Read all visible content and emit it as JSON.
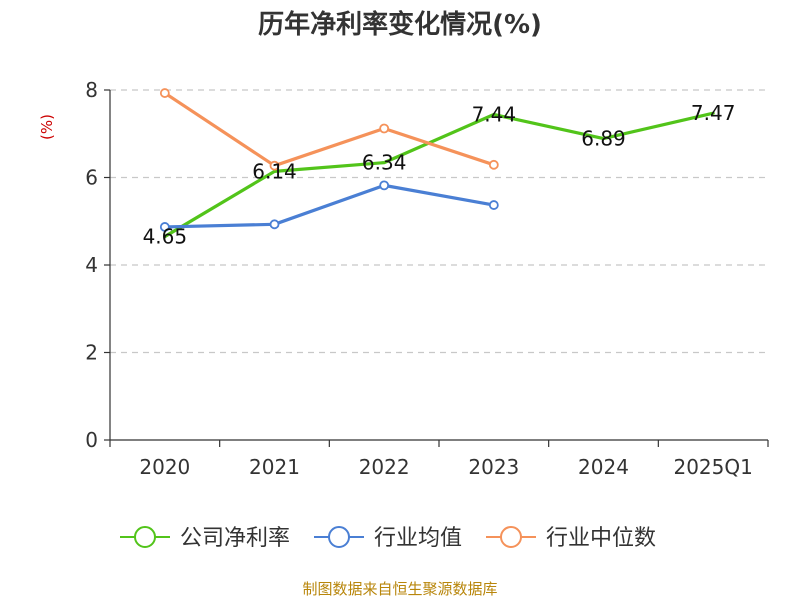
{
  "title": "历年净利率变化情况(%)",
  "source_note": "制图数据来自恒生聚源数据库",
  "colors": {
    "title": "#333333",
    "unit": "#cc0000",
    "source": "#b8860b",
    "axis": "#333333",
    "grid": "#c8c8c8"
  },
  "chart_data": {
    "type": "line",
    "title": "历年净利率变化情况(%)",
    "ylabel": "(%)",
    "xlabel": "",
    "categories": [
      "2020",
      "2021",
      "2022",
      "2023",
      "2024",
      "2025Q1"
    ],
    "ylim": [
      0,
      8
    ],
    "yticks": [
      0,
      2,
      4,
      6,
      8
    ],
    "grid": true,
    "legend_position": "bottom",
    "series": [
      {
        "name": "公司净利率",
        "color": "#52c41a",
        "values": [
          4.65,
          6.14,
          6.34,
          7.44,
          6.89,
          7.47
        ],
        "labels": [
          "4.65",
          "6.14",
          "6.34",
          "7.44",
          "6.89",
          "7.47"
        ],
        "show_labels": true,
        "show_markers": false
      },
      {
        "name": "行业均值",
        "color": "#4a7fd4",
        "values": [
          4.87,
          4.93,
          5.82,
          5.37,
          null,
          null
        ],
        "show_labels": false,
        "show_markers": true
      },
      {
        "name": "行业中位数",
        "color": "#f5925a",
        "values": [
          7.93,
          6.27,
          7.12,
          6.29,
          null,
          null
        ],
        "show_labels": false,
        "show_markers": true
      }
    ]
  }
}
